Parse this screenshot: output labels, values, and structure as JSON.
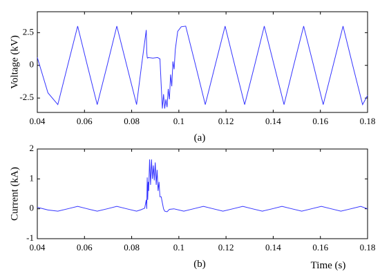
{
  "chart_data": [
    {
      "type": "line",
      "panel": "(a)",
      "caption": "(a)",
      "xlabel": "",
      "ylabel": "Voltage (kV)",
      "xlim": [
        0.04,
        0.18
      ],
      "ylim": [
        -3.6,
        4.1
      ],
      "grid": false,
      "x_ticks": [
        0.04,
        0.06,
        0.08,
        0.1,
        0.12,
        0.14,
        0.16,
        0.18
      ],
      "x_tick_labels": [
        "0.04",
        "0.06",
        "0.08",
        "0.1",
        "0.12",
        "0.14",
        "0.16",
        "0.18"
      ],
      "y_ticks": [
        -2.5,
        0,
        2.5
      ],
      "y_tick_labels": [
        "-2.5",
        "0",
        "2.5"
      ],
      "color": "#3333ff",
      "series": [
        {
          "x": [
            0.04,
            0.0445,
            0.0487,
            0.0529,
            0.0571,
            0.0612,
            0.0654,
            0.0696,
            0.0737,
            0.0779,
            0.0821,
            0.0842,
            0.0862,
            0.0864,
            0.0866,
            0.0868,
            0.087,
            0.089,
            0.091,
            0.092,
            0.0925,
            0.093,
            0.0935,
            0.094,
            0.0945,
            0.095,
            0.0955,
            0.096,
            0.0965,
            0.097,
            0.0975,
            0.098,
            0.0985,
            0.0995,
            0.101,
            0.1029,
            0.1071,
            0.1112,
            0.1154,
            0.1196,
            0.1237,
            0.1279,
            0.1321,
            0.1362,
            0.1404,
            0.1446,
            0.1487,
            0.1529,
            0.1571,
            0.1612,
            0.1654,
            0.1696,
            0.1737,
            0.1779,
            0.18
          ],
          "y": [
            0.6,
            -2.1,
            -3.0,
            0.0,
            3.0,
            0.0,
            -3.0,
            0.0,
            3.0,
            0.0,
            -3.0,
            0.0,
            2.7,
            1.0,
            0.6,
            0.55,
            0.6,
            0.55,
            0.6,
            0.5,
            -1.5,
            -3.3,
            -2.2,
            -3.3,
            -2.6,
            -3.2,
            -1.8,
            -2.6,
            -0.7,
            -1.6,
            0.3,
            -0.3,
            1.2,
            2.6,
            2.95,
            3.0,
            0.0,
            -3.0,
            0.0,
            3.0,
            0.0,
            -3.0,
            0.0,
            3.0,
            0.0,
            -3.0,
            0.0,
            3.0,
            0.0,
            -3.0,
            0.0,
            3.0,
            0.0,
            -3.0,
            -2.3
          ]
        }
      ]
    },
    {
      "type": "line",
      "panel": "(b)",
      "caption": "(b)",
      "xlabel": "Time (s)",
      "ylabel": "Current (kA)",
      "xlim": [
        0.04,
        0.18
      ],
      "ylim": [
        -1,
        2
      ],
      "grid": false,
      "x_ticks": [
        0.04,
        0.06,
        0.08,
        0.1,
        0.12,
        0.14,
        0.16,
        0.18
      ],
      "x_tick_labels": [
        "0.04",
        "0.06",
        "0.08",
        "0.1",
        "0.12",
        "0.14",
        "0.16",
        "0.18"
      ],
      "y_ticks": [
        -1,
        0,
        1,
        2
      ],
      "y_tick_labels": [
        "-1",
        "0",
        "1",
        "2"
      ],
      "color": "#3333ff",
      "series": [
        {
          "x": [
            0.04,
            0.0445,
            0.0487,
            0.0529,
            0.0571,
            0.0612,
            0.0654,
            0.0696,
            0.0737,
            0.0779,
            0.0821,
            0.084,
            0.0855,
            0.0862,
            0.0864,
            0.0866,
            0.0868,
            0.087,
            0.0872,
            0.0876,
            0.088,
            0.0884,
            0.0888,
            0.0892,
            0.0896,
            0.09,
            0.0904,
            0.0908,
            0.0912,
            0.0916,
            0.092,
            0.0925,
            0.093,
            0.0935,
            0.094,
            0.095,
            0.096,
            0.0979,
            0.1021,
            0.1062,
            0.1104,
            0.1146,
            0.1187,
            0.1229,
            0.1271,
            0.1312,
            0.1354,
            0.1396,
            0.1437,
            0.1479,
            0.1521,
            0.1562,
            0.1604,
            0.1646,
            0.1687,
            0.1729,
            0.1771,
            0.18
          ],
          "y": [
            0.05,
            -0.04,
            -0.08,
            0.0,
            0.08,
            0.0,
            -0.08,
            0.0,
            0.08,
            0.0,
            -0.08,
            -0.03,
            0.02,
            0.3,
            0.0,
            1.05,
            0.3,
            0.9,
            0.6,
            1.65,
            0.8,
            1.65,
            1.0,
            1.45,
            0.95,
            1.55,
            0.8,
            1.3,
            0.6,
            0.9,
            0.4,
            0.4,
            0.2,
            0.0,
            -0.08,
            -0.1,
            -0.02,
            0.0,
            -0.08,
            0.0,
            0.08,
            0.0,
            -0.08,
            0.0,
            0.08,
            0.0,
            -0.08,
            0.0,
            0.08,
            0.0,
            -0.08,
            0.0,
            0.08,
            0.0,
            -0.08,
            0.0,
            0.08,
            0.0
          ]
        }
      ]
    }
  ]
}
